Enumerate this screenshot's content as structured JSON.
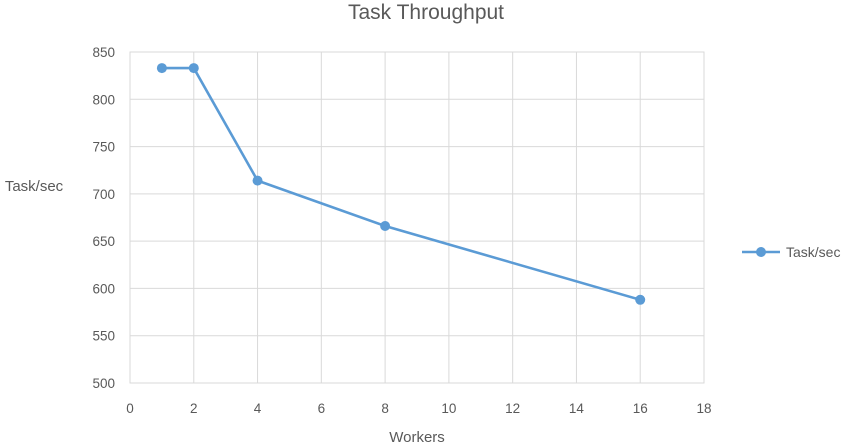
{
  "chart_data": {
    "type": "line",
    "title": "Task Throughput",
    "xlabel": "Workers",
    "ylabel": "Task/sec",
    "xlim": [
      0,
      18
    ],
    "ylim": [
      500,
      850
    ],
    "x_ticks": [
      "0",
      "2",
      "4",
      "6",
      "8",
      "10",
      "12",
      "14",
      "16",
      "18"
    ],
    "y_ticks": [
      "500",
      "550",
      "600",
      "650",
      "700",
      "750",
      "800",
      "850"
    ],
    "grid": true,
    "legend_position": "right",
    "series": [
      {
        "name": "Task/sec",
        "color": "#5b9bd5",
        "x": [
          1,
          2,
          4,
          8,
          16
        ],
        "y": [
          833,
          833,
          714,
          666,
          588
        ]
      }
    ]
  }
}
